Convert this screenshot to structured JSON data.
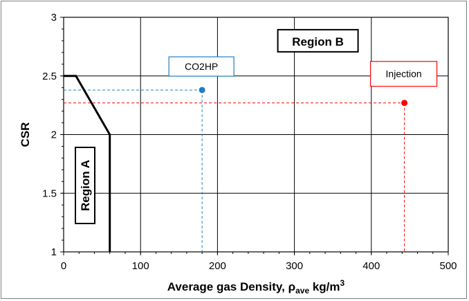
{
  "chart_data": {
    "type": "line",
    "title": "",
    "xlabel": "Average gas Density, ρ_ave kg/m³",
    "xlabel_parts": {
      "main": "Average gas Density, ρ",
      "sub": "ave",
      "unit": " kg/m",
      "sup": "3"
    },
    "ylabel": "CSR",
    "xlim": [
      0,
      500
    ],
    "ylim": [
      1,
      3
    ],
    "x_ticks": [
      0,
      100,
      200,
      300,
      400,
      500
    ],
    "y_ticks": [
      1,
      1.5,
      2,
      2.5,
      3
    ],
    "x_tick_labels": [
      "0",
      "100",
      "200",
      "300",
      "400",
      "500"
    ],
    "y_tick_labels": [
      "1",
      "1.5",
      "2",
      "2.5",
      "3"
    ],
    "grid": true,
    "series": [
      {
        "kind": "boundary",
        "color": "#000000",
        "points": [
          [
            0,
            2.5
          ],
          [
            16,
            2.5
          ],
          [
            60,
            2.0
          ],
          [
            60,
            1.0
          ]
        ]
      }
    ],
    "points": [
      {
        "label": "CO2HP",
        "x": 180,
        "y": 2.38,
        "color": "#1f7fc0",
        "guide_color": "#1f7fc0"
      },
      {
        "label": "Injection",
        "x": 443,
        "y": 2.27,
        "color": "#ff0000",
        "guide_color": "#ff0000"
      }
    ],
    "annotations": [
      {
        "text": "Region B",
        "x": 300,
        "y": 2.8
      },
      {
        "text": "Region A",
        "x": 30,
        "y": 1.55
      }
    ]
  }
}
